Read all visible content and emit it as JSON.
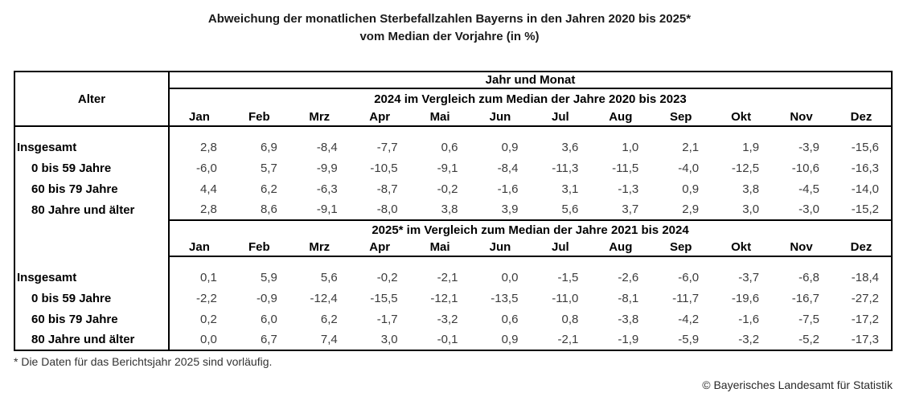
{
  "title": {
    "line1": "Abweichung der monatlichen Sterbefallzahlen Bayerns in den Jahren 2020 bis 2025*",
    "line2": "vom Median der Vorjahre (in %)"
  },
  "table": {
    "corner_header": "Alter",
    "top_header": "Jahr und Monat",
    "months": [
      "Jan",
      "Feb",
      "Mrz",
      "Apr",
      "Mai",
      "Jun",
      "Jul",
      "Aug",
      "Sep",
      "Okt",
      "Nov",
      "Dez"
    ],
    "section_headers": [
      "2024 im Vergleich zum Median der Jahre 2020 bis 2023",
      "2025* im Vergleich zum Median der Jahre 2021 bis 2024"
    ]
  },
  "chart_data": {
    "type": "table",
    "title": "Abweichung der monatlichen Sterbefallzahlen Bayerns in den Jahren 2020 bis 2025* vom Median der Vorjahre (in %)",
    "row_header": "Alter",
    "columns": [
      "Jan",
      "Feb",
      "Mrz",
      "Apr",
      "Mai",
      "Jun",
      "Jul",
      "Aug",
      "Sep",
      "Okt",
      "Nov",
      "Dez"
    ],
    "value_unit": "percent deviation from median",
    "decimal_separator": ",",
    "sections": [
      {
        "label": "2024 im Vergleich zum Median der Jahre 2020 bis 2023",
        "series": [
          {
            "name": "Insgesamt",
            "values": [
              2.8,
              6.9,
              -8.4,
              -7.7,
              0.6,
              0.9,
              3.6,
              1.0,
              2.1,
              1.9,
              -3.9,
              -15.6
            ]
          },
          {
            "name": "0 bis 59 Jahre",
            "values": [
              -6.0,
              5.7,
              -9.9,
              -10.5,
              -9.1,
              -8.4,
              -11.3,
              -11.5,
              -4.0,
              -12.5,
              -10.6,
              -16.3
            ]
          },
          {
            "name": "60 bis 79 Jahre",
            "values": [
              4.4,
              6.2,
              -6.3,
              -8.7,
              -0.2,
              -1.6,
              3.1,
              -1.3,
              0.9,
              3.8,
              -4.5,
              -14.0
            ]
          },
          {
            "name": "80 Jahre und älter",
            "values": [
              2.8,
              8.6,
              -9.1,
              -8.0,
              3.8,
              3.9,
              5.6,
              3.7,
              2.9,
              3.0,
              -3.0,
              -15.2
            ]
          }
        ]
      },
      {
        "label": "2025* im Vergleich zum Median der Jahre 2021 bis 2024",
        "series": [
          {
            "name": "Insgesamt",
            "values": [
              0.1,
              5.9,
              5.6,
              -0.2,
              -2.1,
              0.0,
              -1.5,
              -2.6,
              -6.0,
              -3.7,
              -6.8,
              -18.4
            ]
          },
          {
            "name": "0 bis 59 Jahre",
            "values": [
              -2.2,
              -0.9,
              -12.4,
              -15.5,
              -12.1,
              -13.5,
              -11.0,
              -8.1,
              -11.7,
              -19.6,
              -16.7,
              -27.2
            ]
          },
          {
            "name": "60 bis 79 Jahre",
            "values": [
              0.2,
              6.0,
              6.2,
              -1.7,
              -3.2,
              0.6,
              0.8,
              -3.8,
              -4.2,
              -1.6,
              -7.5,
              -17.2
            ]
          },
          {
            "name": "80 Jahre und älter",
            "values": [
              0.0,
              6.7,
              7.4,
              3.0,
              -0.1,
              0.9,
              -2.1,
              -1.9,
              -5.9,
              -3.2,
              -5.2,
              -17.3
            ]
          }
        ]
      }
    ]
  },
  "footnote": "* Die Daten für das Berichtsjahr 2025 sind vorläufig.",
  "copyright": "© Bayerisches Landesamt für Statistik",
  "colors": {
    "background": "#ffffff",
    "border": "#000000",
    "header_text": "#000000",
    "data_text": "#3c3c3c"
  }
}
